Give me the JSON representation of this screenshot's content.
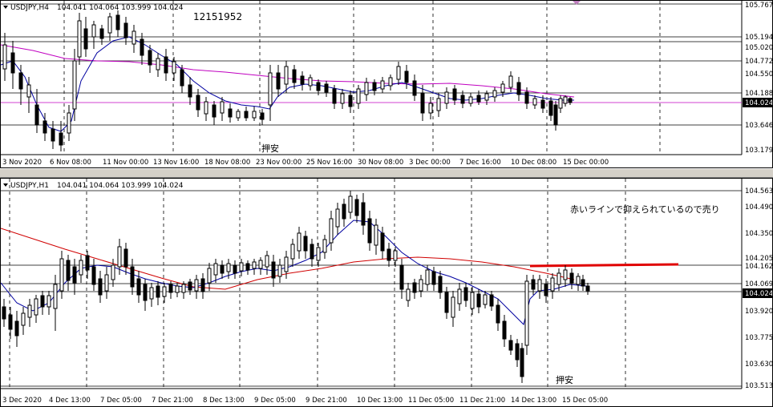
{
  "top_chart": {
    "symbol_label": "USDJPY,H4",
    "ohlc_label": "104.041 104.064 103.999 104.024",
    "annotation_number": "12151952",
    "annotation_jp": "押安",
    "price_labels": [
      "105.767",
      "105.194",
      "105.020",
      "104.772",
      "104.550",
      "104.188",
      "104.024",
      "103.646",
      "103.179"
    ],
    "time_labels": [
      "3 Nov 2020",
      "6 Nov 08:00",
      "11 Nov 00:00",
      "13 Nov 16:00",
      "18 Nov 08:00",
      "23 Nov 00:00",
      "25 Nov 16:00",
      "30 Nov 08:00",
      "3 Dec 00:00",
      "7 Dec 16:00",
      "10 Dec 08:00",
      "15 Dec 00:00"
    ]
  },
  "bottom_chart": {
    "symbol_label": "USDJPY,H1",
    "ohlc_label": "104.041 104.064 103.999 104.024",
    "annotation_jp": "赤いラインで抑えられているので売り",
    "annotation_bottom": "押安",
    "price_labels": [
      "104.563",
      "104.490",
      "104.350",
      "104.205",
      "104.162",
      "104.069",
      "104.024",
      "103.920",
      "103.775",
      "103.630",
      "103.513"
    ],
    "time_labels": [
      "3 Dec 2020",
      "4 Dec 13:00",
      "7 Dec 05:00",
      "7 Dec 21:00",
      "8 Dec 13:00",
      "9 Dec 05:00",
      "9 Dec 21:00",
      "10 Dec 13:00",
      "11 Dec 05:00",
      "11 Dec 21:00",
      "14 Dec 13:00",
      "15 Dec 05:00"
    ]
  },
  "colors": {
    "ma_fast": "#0000a0",
    "ma_slow_top": "#c000c0",
    "ma_slow_bottom": "#d00000",
    "resistance": "#e00000",
    "price_tag": "#000000"
  }
}
